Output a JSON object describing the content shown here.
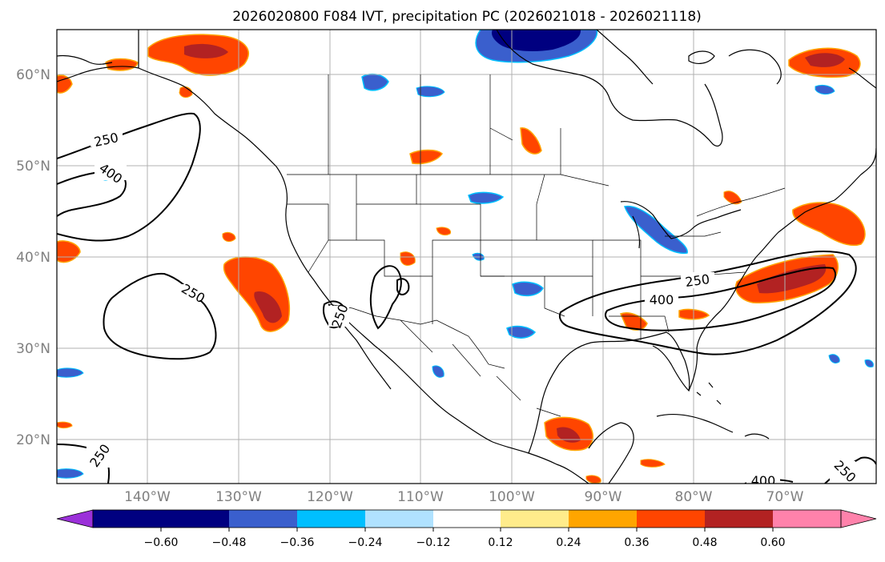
{
  "title": "2026020800 F084 IVT, precipitation PC (2026021018 - 2026021118)",
  "map": {
    "lat_labels": [
      "60°N",
      "50°N",
      "40°N",
      "30°N",
      "20°N"
    ],
    "lon_labels": [
      "140°W",
      "130°W",
      "120°W",
      "110°W",
      "100°W",
      "90°W",
      "80°W",
      "70°W"
    ],
    "contour_labels": [
      "250",
      "400",
      "250",
      "250",
      "400",
      "250",
      "250",
      "400",
      "250"
    ]
  },
  "colorbar": {
    "ticks": [
      "−0.60",
      "−0.48",
      "−0.36",
      "−0.24",
      "−0.12",
      "0.12",
      "0.24",
      "0.36",
      "0.48",
      "0.60"
    ],
    "colors": {
      "under": "#9b30d9",
      "bins": [
        "#000080",
        "#3a5fcd",
        "#00bfff",
        "#b0e2ff",
        "#ffffff",
        "#ffec8b",
        "#ffa500",
        "#ff4500",
        "#b22222"
      ],
      "over": "#ff82ab"
    }
  },
  "colors": {
    "pos_low": "#ffec8b",
    "pos_mid": "#ffa500",
    "pos_high": "#ff4500",
    "pos_max": "#b22222",
    "pos_extreme": "#ff82ab",
    "neg_low": "#b0e2ff",
    "neg_mid": "#00bfff",
    "neg_high": "#3a5fcd",
    "neg_max": "#000080",
    "grid": "#b0b0b0",
    "axis_label": "#808080"
  }
}
